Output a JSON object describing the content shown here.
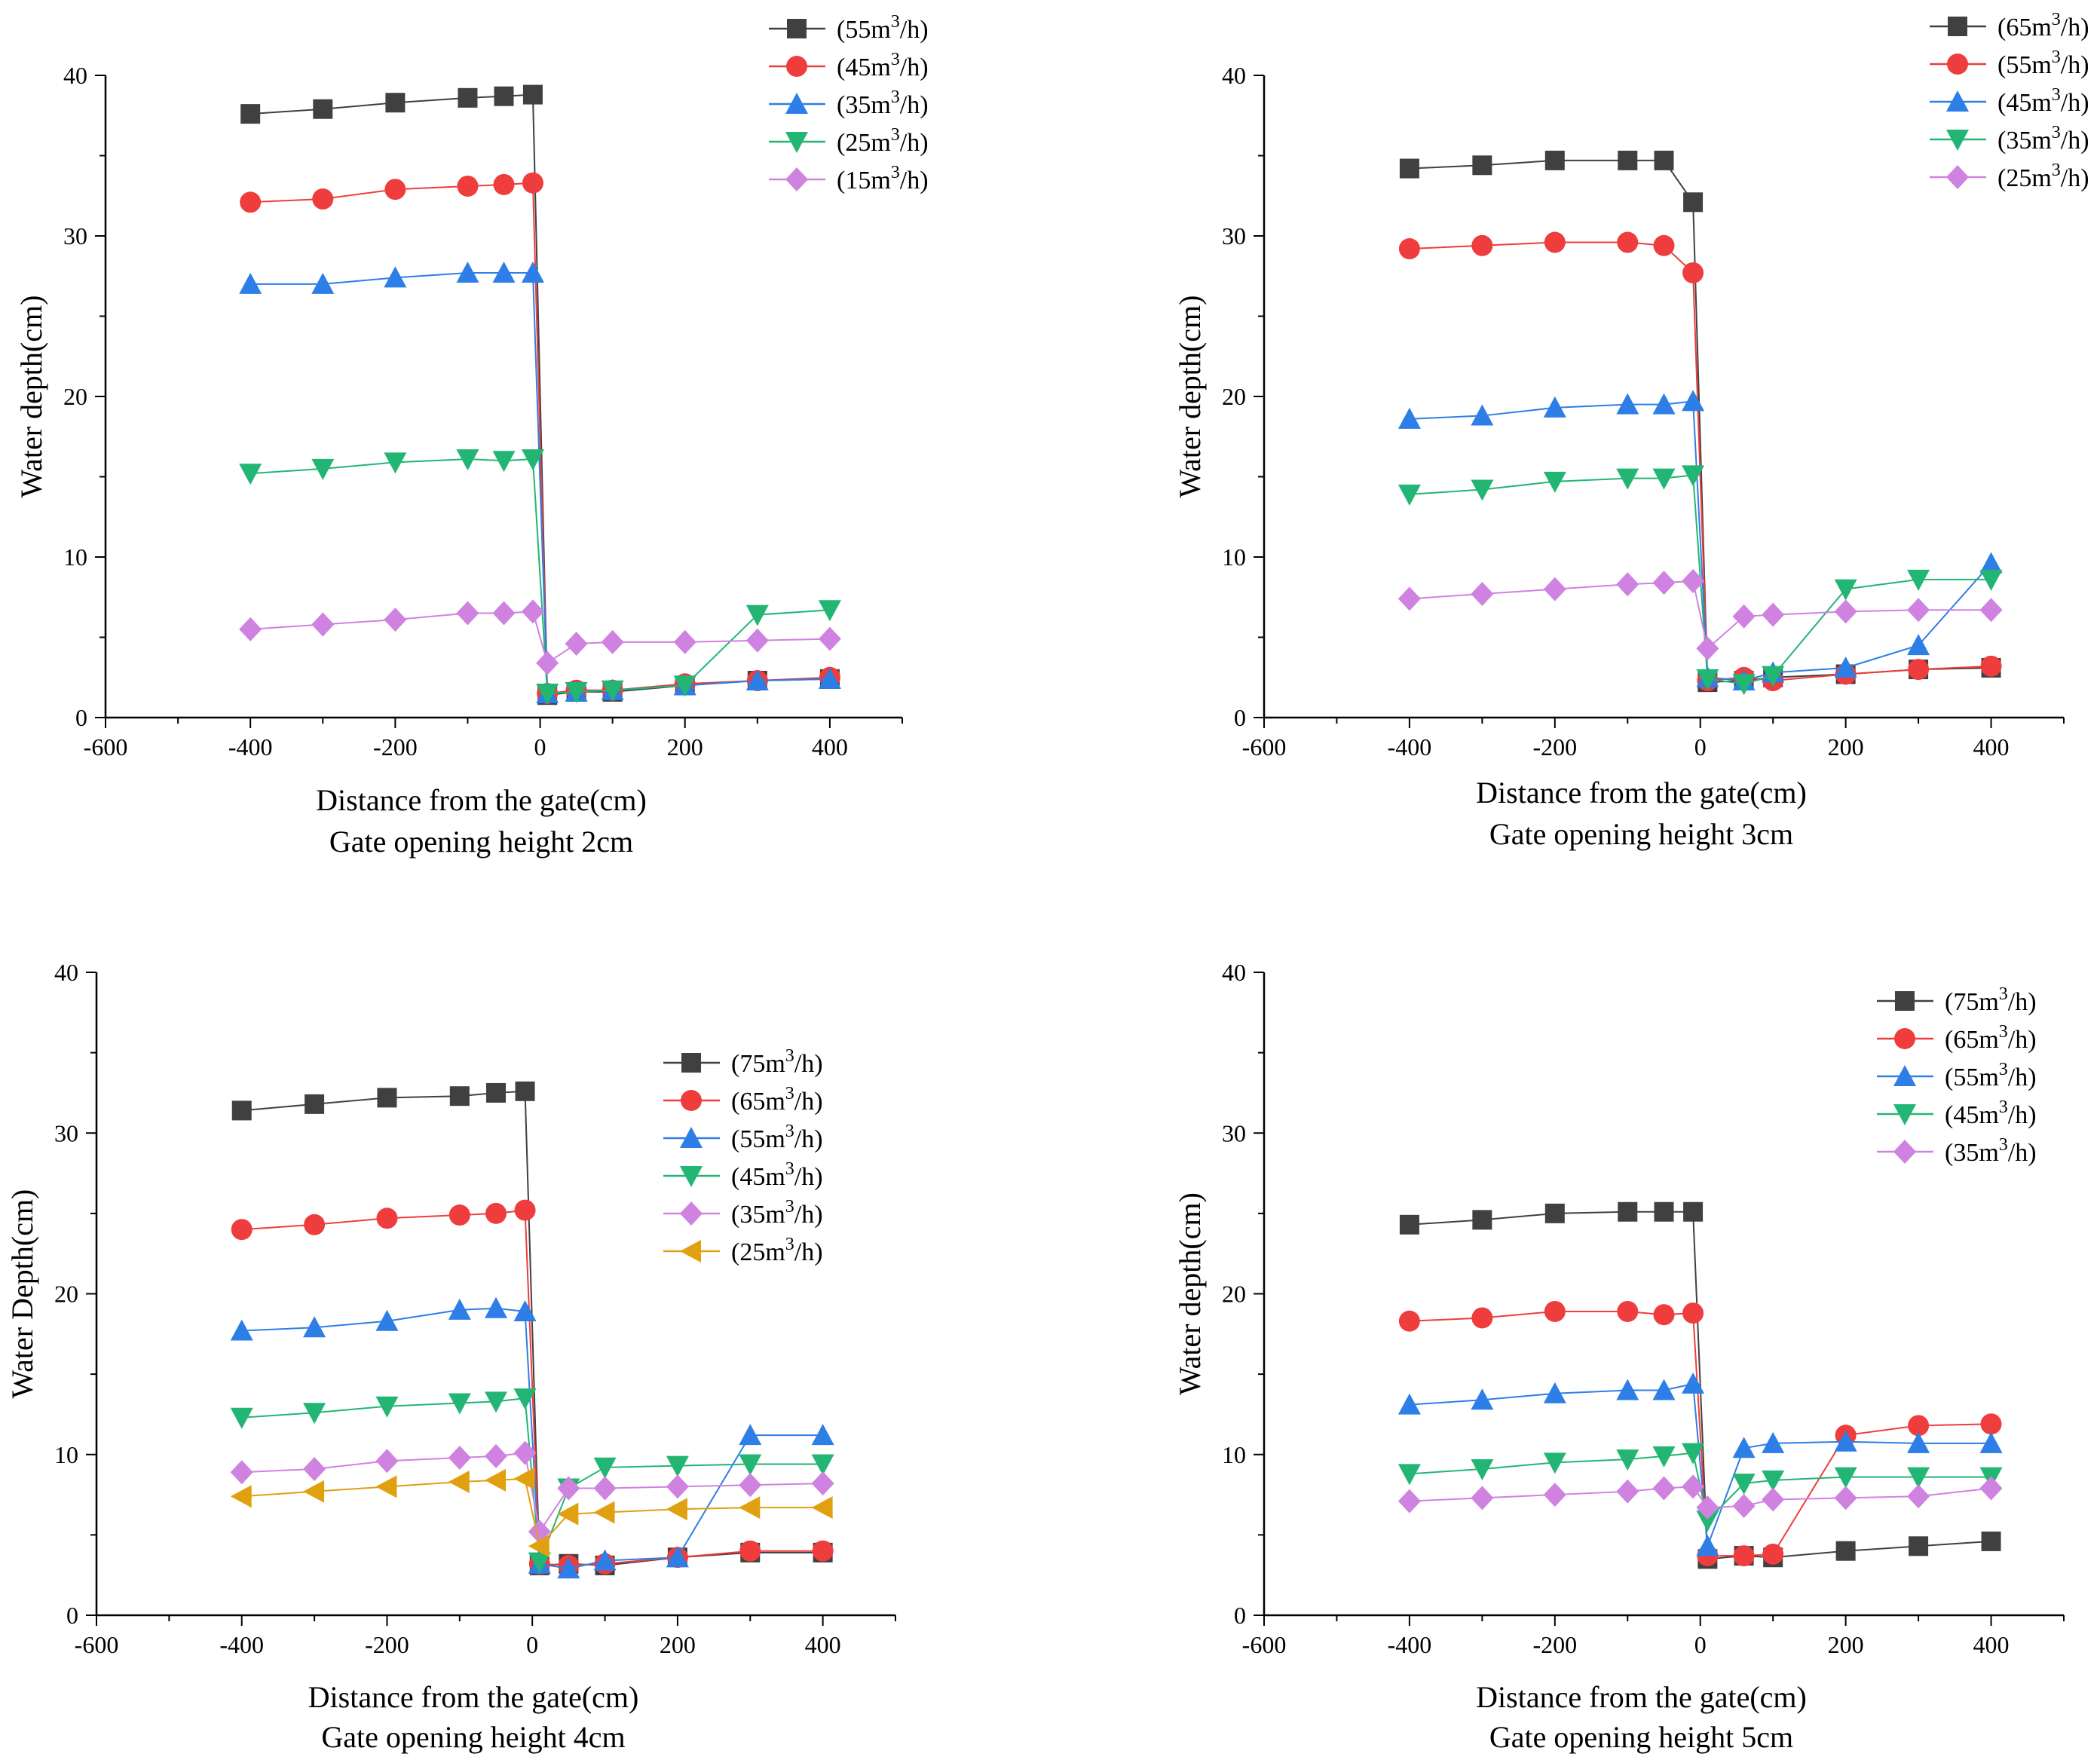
{
  "chart_data": [
    {
      "type": "line",
      "title": "Gate opening height 2cm",
      "xlabel": "Distance from the gate(cm)",
      "ylabel": "Water depth(cm)",
      "xlim": [
        -600,
        500
      ],
      "ylim": [
        0,
        40
      ],
      "xticks": [
        -600,
        -400,
        -200,
        0,
        200,
        400
      ],
      "yticks": [
        0,
        10,
        20,
        30,
        40
      ],
      "legend_position": "top-right",
      "series": [
        {
          "name": "55",
          "marker": "square",
          "color": "#404040",
          "x": [
            -400,
            -300,
            -200,
            -100,
            -50,
            -10,
            10,
            50,
            100,
            200,
            300,
            400
          ],
          "y": [
            37.6,
            37.9,
            38.3,
            38.6,
            38.7,
            38.8,
            1.4,
            1.6,
            1.6,
            2.0,
            2.3,
            2.4
          ]
        },
        {
          "name": "45",
          "marker": "circle",
          "color": "#ef3c3c",
          "x": [
            -400,
            -300,
            -200,
            -100,
            -50,
            -10,
            10,
            50,
            100,
            200,
            300,
            400
          ],
          "y": [
            32.1,
            32.3,
            32.9,
            33.1,
            33.2,
            33.3,
            1.5,
            1.7,
            1.7,
            2.1,
            2.3,
            2.5
          ]
        },
        {
          "name": "35",
          "marker": "triangle-up",
          "color": "#2d7ee6",
          "x": [
            -400,
            -300,
            -200,
            -100,
            -50,
            -10,
            10,
            50,
            100,
            200,
            300,
            400
          ],
          "y": [
            27.0,
            27.0,
            27.4,
            27.7,
            27.7,
            27.7,
            1.5,
            1.6,
            1.7,
            2.0,
            2.3,
            2.4
          ]
        },
        {
          "name": "25",
          "marker": "triangle-down",
          "color": "#22b573",
          "x": [
            -400,
            -300,
            -200,
            -100,
            -50,
            -10,
            10,
            50,
            100,
            200,
            300,
            400
          ],
          "y": [
            15.2,
            15.5,
            15.9,
            16.1,
            16.0,
            16.1,
            1.5,
            1.6,
            1.7,
            2.0,
            6.4,
            6.7
          ]
        },
        {
          "name": "15",
          "marker": "diamond",
          "color": "#cf82e0",
          "x": [
            -400,
            -300,
            -200,
            -100,
            -50,
            -10,
            10,
            50,
            100,
            200,
            300,
            400
          ],
          "y": [
            5.5,
            5.8,
            6.1,
            6.5,
            6.5,
            6.6,
            3.4,
            4.6,
            4.7,
            4.7,
            4.8,
            4.9
          ]
        }
      ]
    },
    {
      "type": "line",
      "title": "Gate opening height 3cm",
      "xlabel": "Distance from the gate(cm)",
      "ylabel": "Water depth(cm)",
      "xlim": [
        -600,
        500
      ],
      "ylim": [
        0,
        40
      ],
      "xticks": [
        -600,
        -400,
        -200,
        0,
        200,
        400
      ],
      "yticks": [
        0,
        10,
        20,
        30,
        40
      ],
      "legend_position": "top-right",
      "series": [
        {
          "name": "65",
          "marker": "square",
          "color": "#404040",
          "x": [
            -400,
            -300,
            -200,
            -100,
            -50,
            -10,
            10,
            60,
            100,
            200,
            300,
            400
          ],
          "y": [
            34.2,
            34.4,
            34.7,
            34.7,
            34.7,
            32.1,
            2.2,
            2.3,
            2.5,
            2.7,
            3.0,
            3.1
          ]
        },
        {
          "name": "55",
          "marker": "circle",
          "color": "#ef3c3c",
          "x": [
            -400,
            -300,
            -200,
            -100,
            -50,
            -10,
            10,
            60,
            100,
            200,
            300,
            400
          ],
          "y": [
            29.2,
            29.4,
            29.6,
            29.6,
            29.4,
            27.7,
            2.3,
            2.5,
            2.3,
            2.7,
            3.0,
            3.2
          ]
        },
        {
          "name": "45",
          "marker": "triangle-up",
          "color": "#2d7ee6",
          "x": [
            -400,
            -300,
            -200,
            -100,
            -50,
            -10,
            10,
            60,
            100,
            200,
            300,
            400
          ],
          "y": [
            18.6,
            18.8,
            19.3,
            19.5,
            19.5,
            19.7,
            2.5,
            2.3,
            2.8,
            3.1,
            4.5,
            9.6
          ]
        },
        {
          "name": "35",
          "marker": "triangle-down",
          "color": "#22b573",
          "x": [
            -400,
            -300,
            -200,
            -100,
            -50,
            -10,
            10,
            60,
            100,
            200,
            300,
            400
          ],
          "y": [
            13.9,
            14.2,
            14.7,
            14.9,
            14.9,
            15.1,
            2.4,
            2.1,
            2.6,
            8.0,
            8.6,
            8.6
          ]
        },
        {
          "name": "25",
          "marker": "diamond",
          "color": "#cf82e0",
          "x": [
            -400,
            -300,
            -200,
            -100,
            -50,
            -10,
            10,
            60,
            100,
            200,
            300,
            400
          ],
          "y": [
            7.4,
            7.7,
            8.0,
            8.3,
            8.4,
            8.5,
            4.3,
            6.3,
            6.4,
            6.6,
            6.7,
            6.7
          ]
        }
      ]
    },
    {
      "type": "line",
      "title": "Gate opening height 4cm",
      "xlabel": "Distance from the gate(cm)",
      "ylabel": "Water Depth(cm)",
      "xlim": [
        -600,
        500
      ],
      "ylim": [
        0,
        40
      ],
      "xticks": [
        -600,
        -400,
        -200,
        0,
        200,
        400
      ],
      "yticks": [
        0,
        10,
        20,
        30,
        40
      ],
      "legend_position": "center-right",
      "series": [
        {
          "name": "75",
          "marker": "square",
          "color": "#404040",
          "x": [
            -400,
            -300,
            -200,
            -100,
            -50,
            -10,
            10,
            50,
            100,
            200,
            300,
            400
          ],
          "y": [
            31.4,
            31.8,
            32.2,
            32.3,
            32.5,
            32.6,
            3.1,
            3.2,
            3.1,
            3.6,
            3.9,
            3.9
          ]
        },
        {
          "name": "65",
          "marker": "circle",
          "color": "#ef3c3c",
          "x": [
            -400,
            -300,
            -200,
            -100,
            -50,
            -10,
            10,
            50,
            100,
            200,
            300,
            400
          ],
          "y": [
            24.0,
            24.3,
            24.7,
            24.9,
            25.0,
            25.2,
            3.2,
            3.1,
            3.2,
            3.6,
            4.0,
            4.0
          ]
        },
        {
          "name": "55",
          "marker": "triangle-up",
          "color": "#2d7ee6",
          "x": [
            -400,
            -300,
            -200,
            -100,
            -50,
            -10,
            10,
            50,
            100,
            200,
            300,
            400
          ],
          "y": [
            17.7,
            17.9,
            18.3,
            19.0,
            19.1,
            18.9,
            3.2,
            2.9,
            3.4,
            3.6,
            11.2,
            11.2
          ]
        },
        {
          "name": "45",
          "marker": "triangle-down",
          "color": "#22b573",
          "x": [
            -400,
            -300,
            -200,
            -100,
            -50,
            -10,
            10,
            50,
            100,
            200,
            300,
            400
          ],
          "y": [
            12.3,
            12.6,
            13.0,
            13.2,
            13.3,
            13.5,
            3.3,
            7.9,
            9.2,
            9.3,
            9.4,
            9.4
          ]
        },
        {
          "name": "35",
          "marker": "diamond",
          "color": "#cf82e0",
          "x": [
            -400,
            -300,
            -200,
            -100,
            -50,
            -10,
            10,
            50,
            100,
            200,
            300,
            400
          ],
          "y": [
            8.9,
            9.1,
            9.6,
            9.8,
            9.9,
            10.1,
            5.2,
            7.9,
            7.9,
            8.0,
            8.1,
            8.2
          ]
        },
        {
          "name": "25",
          "marker": "triangle-left",
          "color": "#e0a010",
          "x": [
            -400,
            -300,
            -200,
            -100,
            -50,
            -10,
            10,
            50,
            100,
            200,
            300,
            400
          ],
          "y": [
            7.4,
            7.7,
            8.0,
            8.3,
            8.4,
            8.5,
            4.3,
            6.3,
            6.4,
            6.6,
            6.7,
            6.7
          ]
        }
      ]
    },
    {
      "type": "line",
      "title": "Gate opening height 5cm",
      "xlabel": "Distance from the gate(cm)",
      "ylabel": "Water depth(cm)",
      "xlim": [
        -600,
        500
      ],
      "ylim": [
        0,
        40
      ],
      "xticks": [
        -600,
        -400,
        -200,
        0,
        200,
        400
      ],
      "yticks": [
        0,
        10,
        20,
        30,
        40
      ],
      "legend_position": "top-right",
      "series": [
        {
          "name": "75",
          "marker": "square",
          "color": "#404040",
          "x": [
            -400,
            -300,
            -200,
            -100,
            -50,
            -10,
            10,
            60,
            100,
            200,
            300,
            400
          ],
          "y": [
            24.3,
            24.6,
            25.0,
            25.1,
            25.1,
            25.1,
            3.5,
            3.7,
            3.6,
            4.0,
            4.3,
            4.6
          ]
        },
        {
          "name": "65",
          "marker": "circle",
          "color": "#ef3c3c",
          "x": [
            -400,
            -300,
            -200,
            -100,
            -50,
            -10,
            10,
            60,
            100,
            200,
            300,
            400
          ],
          "y": [
            18.3,
            18.5,
            18.9,
            18.9,
            18.7,
            18.8,
            3.7,
            3.7,
            3.8,
            11.2,
            11.8,
            11.9
          ]
        },
        {
          "name": "55",
          "marker": "triangle-up",
          "color": "#2d7ee6",
          "x": [
            -400,
            -300,
            -200,
            -100,
            -50,
            -10,
            10,
            60,
            100,
            200,
            300,
            400
          ],
          "y": [
            13.1,
            13.4,
            13.8,
            14.0,
            14.0,
            14.4,
            4.3,
            10.4,
            10.7,
            10.8,
            10.7,
            10.7
          ]
        },
        {
          "name": "45",
          "marker": "triangle-down",
          "color": "#22b573",
          "x": [
            -400,
            -300,
            -200,
            -100,
            -50,
            -10,
            10,
            60,
            100,
            200,
            300,
            400
          ],
          "y": [
            8.8,
            9.1,
            9.5,
            9.7,
            9.9,
            10.1,
            5.9,
            8.2,
            8.4,
            8.6,
            8.6,
            8.6
          ]
        },
        {
          "name": "35",
          "marker": "diamond",
          "color": "#cf82e0",
          "x": [
            -400,
            -300,
            -200,
            -100,
            -50,
            -10,
            10,
            60,
            100,
            200,
            300,
            400
          ],
          "y": [
            7.1,
            7.3,
            7.5,
            7.7,
            7.9,
            8.0,
            6.7,
            6.8,
            7.2,
            7.3,
            7.4,
            7.9
          ]
        }
      ]
    }
  ]
}
